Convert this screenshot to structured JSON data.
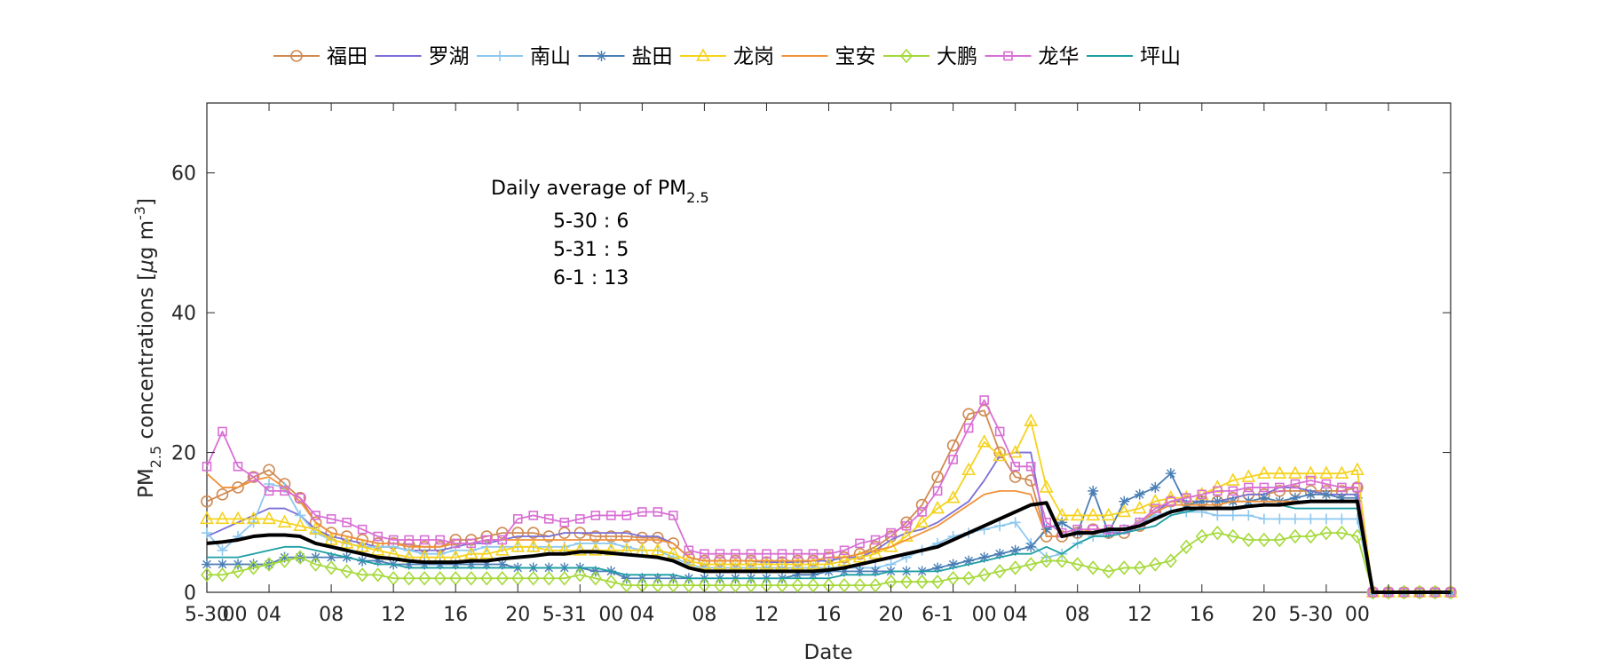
{
  "chart_data": {
    "type": "line",
    "xlabel": "Date",
    "ylabel_main": "PM",
    "ylabel_sub": "2.5",
    "ylabel_rest": " concentrations [",
    "ylabel_mu": "μ",
    "ylabel_unit": "g m",
    "ylabel_sup": "-3",
    "ylabel_close": "]",
    "ylim": [
      0,
      70
    ],
    "yticks": [
      0,
      20,
      40,
      60
    ],
    "xlim": [
      0,
      80
    ],
    "x_tick_labels": [
      {
        "x": 0,
        "label": "5-30"
      },
      {
        "x": 1.8,
        "label": "00"
      },
      {
        "x": 4,
        "label": "04"
      },
      {
        "x": 8,
        "label": "08"
      },
      {
        "x": 12,
        "label": "12"
      },
      {
        "x": 16,
        "label": "16"
      },
      {
        "x": 20,
        "label": "20"
      },
      {
        "x": 23,
        "label": "5-31"
      },
      {
        "x": 26,
        "label": "00"
      },
      {
        "x": 28,
        "label": "04"
      },
      {
        "x": 32,
        "label": "08"
      },
      {
        "x": 36,
        "label": "12"
      },
      {
        "x": 40,
        "label": "16"
      },
      {
        "x": 44,
        "label": "20"
      },
      {
        "x": 47,
        "label": "6-1"
      },
      {
        "x": 50,
        "label": "00"
      },
      {
        "x": 52,
        "label": "04"
      },
      {
        "x": 56,
        "label": "08"
      },
      {
        "x": 60,
        "label": "12"
      },
      {
        "x": 64,
        "label": "16"
      },
      {
        "x": 68,
        "label": "20"
      },
      {
        "x": 71,
        "label": "5-30"
      },
      {
        "x": 74,
        "label": "00"
      }
    ],
    "x_ticks": [
      0,
      4,
      8,
      12,
      16,
      20,
      24,
      28,
      32,
      36,
      40,
      44,
      48,
      52,
      56,
      60,
      64,
      68,
      72,
      76,
      80
    ],
    "grid": false,
    "legend_position": "top",
    "annotation": {
      "title_main": "Daily average of PM",
      "title_sub": "2.5",
      "lines": [
        "5-30 : 6",
        "5-31 : 5",
        "6-1 : 13"
      ]
    },
    "series": [
      {
        "name": "福田",
        "color": "#d08a52",
        "marker": "circle",
        "values": [
          13,
          14,
          15,
          16.5,
          17.5,
          15.5,
          13.5,
          10,
          8.5,
          8,
          7.5,
          7,
          7,
          6.8,
          6.5,
          6.5,
          7.5,
          7.5,
          8,
          8.5,
          8.5,
          8.5,
          8,
          8.5,
          8.5,
          8,
          8,
          8,
          7.8,
          7.8,
          7,
          5,
          4.5,
          4.5,
          4.5,
          4.5,
          4.3,
          4.3,
          4.5,
          4.5,
          5,
          5,
          5.5,
          6.5,
          8,
          10,
          12.5,
          16.5,
          21,
          25.5,
          26,
          20,
          16.5,
          16,
          8,
          8,
          8.5,
          9,
          8.5,
          8.5,
          9.5,
          11.5,
          13,
          13,
          13,
          13,
          13.5,
          14,
          14,
          14.5,
          14.5,
          14.5,
          14.5,
          14.5,
          15,
          0,
          0,
          0,
          0,
          0,
          0
        ]
      },
      {
        "name": "罗湖",
        "color": "#7a6fd6",
        "marker": "none",
        "values": [
          8,
          9,
          10,
          11,
          12,
          12,
          11,
          9,
          8,
          7.5,
          7,
          6.5,
          6.5,
          6,
          6,
          6,
          6.5,
          7,
          7,
          7.5,
          8,
          8,
          8,
          8.5,
          8.5,
          8.5,
          8.5,
          8.5,
          8,
          8,
          7,
          5,
          4.5,
          4.5,
          4.5,
          4.5,
          4.3,
          4.3,
          4.3,
          4.5,
          4.5,
          5,
          5,
          6,
          7.5,
          8.5,
          9,
          10,
          11.5,
          13,
          16,
          19.5,
          20,
          20,
          8,
          8,
          8.5,
          9,
          8.5,
          8.5,
          9.5,
          11.5,
          13,
          13,
          13,
          13,
          13.5,
          14,
          14,
          15,
          15,
          14.5,
          14,
          14,
          14,
          0,
          0,
          0,
          0,
          0,
          0
        ]
      },
      {
        "name": "南山",
        "color": "#8dc8f0",
        "marker": "plus",
        "values": [
          8.5,
          6,
          8,
          10,
          15.5,
          15,
          11,
          8.5,
          7.5,
          7,
          6.5,
          6.5,
          6.5,
          6,
          5.5,
          5.5,
          6,
          6,
          6.5,
          6.5,
          6.5,
          6.5,
          6.5,
          6.5,
          7,
          7,
          7,
          6.5,
          6,
          6,
          5,
          4,
          3.5,
          3.5,
          3.5,
          3.5,
          3.5,
          3.5,
          3.5,
          3.5,
          3.5,
          3.5,
          3.5,
          3.5,
          4,
          5,
          6,
          7,
          8,
          8.5,
          9,
          9.5,
          10,
          7,
          5,
          5.5,
          7,
          8,
          8.5,
          9,
          10,
          11,
          11.5,
          11.5,
          11.5,
          11,
          11,
          11,
          10.5,
          10.5,
          10.5,
          10.5,
          10.5,
          10.5,
          10.5,
          0,
          0,
          0,
          0,
          0,
          0
        ]
      },
      {
        "name": "盐田",
        "color": "#4a7fb5",
        "marker": "asterisk",
        "values": [
          4,
          4,
          4,
          4,
          4,
          5,
          5,
          5,
          5,
          5,
          4.5,
          4.5,
          4,
          4,
          4,
          4,
          4,
          4,
          4,
          4,
          3.5,
          3.5,
          3.5,
          3.5,
          3.5,
          3,
          3,
          2,
          2,
          2,
          2,
          2,
          2,
          2,
          2,
          2,
          2,
          2,
          2.5,
          2.5,
          3,
          3,
          3,
          3,
          3,
          3,
          3,
          3.5,
          4,
          4.5,
          5,
          5.5,
          6,
          6.5,
          9,
          10,
          8.5,
          14.5,
          8.5,
          13,
          14,
          15,
          17,
          12.5,
          13,
          13,
          13,
          13,
          13.5,
          13,
          13.5,
          14,
          14,
          13.5,
          13.5,
          0,
          0,
          0,
          0,
          0,
          0
        ]
      },
      {
        "name": "龙岗",
        "color": "#f5d21c",
        "marker": "triangle",
        "values": [
          10.5,
          10.5,
          10.5,
          10.5,
          10.5,
          10,
          9.5,
          9,
          7.5,
          7,
          6.5,
          6,
          5.5,
          5,
          5,
          5,
          5,
          5.5,
          5.5,
          6,
          6.5,
          6.5,
          6,
          6,
          6,
          6,
          6,
          6,
          6,
          6,
          5.5,
          4.5,
          4,
          4,
          4,
          4,
          4,
          4,
          4,
          4,
          4,
          4.5,
          5,
          5.5,
          6.5,
          8,
          10,
          12,
          13.5,
          17.5,
          21.5,
          19.5,
          20,
          24.5,
          15,
          11,
          11,
          11,
          11,
          11.5,
          12,
          13,
          13.5,
          13.5,
          14,
          15,
          16,
          16.5,
          17,
          17,
          17,
          17,
          17,
          17,
          17.5,
          0,
          0,
          0,
          0,
          0,
          0
        ]
      },
      {
        "name": "宝安",
        "color": "#f0923a",
        "marker": "none",
        "values": [
          17,
          15,
          15,
          16,
          16.5,
          15,
          13,
          10,
          8.5,
          8,
          7.5,
          7,
          7,
          6.5,
          6.5,
          6.5,
          7,
          7,
          7.5,
          7.5,
          7.5,
          7.5,
          7.5,
          7.5,
          7.5,
          7.5,
          7.5,
          7.5,
          7.5,
          7.5,
          7,
          5,
          4.5,
          4.5,
          4.5,
          4.5,
          4.5,
          4.5,
          4.5,
          4.5,
          5,
          5,
          5.5,
          6,
          6.5,
          7.5,
          8.5,
          9.5,
          11,
          12.5,
          14,
          14.5,
          14.5,
          14,
          8,
          8,
          8.5,
          9,
          9,
          9,
          10,
          11.5,
          12.5,
          12.5,
          12.5,
          12.5,
          13,
          13,
          13,
          13,
          13,
          13,
          13,
          13,
          13,
          0,
          0,
          0,
          0,
          0,
          0
        ]
      },
      {
        "name": "大鹏",
        "color": "#a5d93a",
        "marker": "diamond",
        "values": [
          2.5,
          2.5,
          3,
          3.5,
          4,
          4.5,
          5,
          4,
          3.5,
          3,
          2.5,
          2.5,
          2,
          2,
          2,
          2,
          2,
          2,
          2,
          2,
          2,
          2,
          2,
          2,
          2.5,
          2,
          1.5,
          1,
          1,
          1,
          1,
          1,
          1,
          1,
          1,
          1,
          1,
          1,
          1,
          1,
          1,
          1,
          1,
          1,
          1.5,
          1.5,
          1.5,
          1.5,
          2,
          2,
          2.5,
          3,
          3.5,
          4,
          4.5,
          4.5,
          4,
          3.5,
          3,
          3.5,
          3.5,
          4,
          4.5,
          6.5,
          8,
          8.5,
          8,
          7.5,
          7.5,
          7.5,
          8,
          8,
          8.5,
          8.5,
          8,
          0,
          0,
          0,
          0,
          0,
          0
        ]
      },
      {
        "name": "龙华",
        "color": "#d96fd4",
        "marker": "square",
        "values": [
          18,
          23,
          18,
          16.5,
          14.5,
          14.5,
          13.5,
          11,
          10.5,
          10,
          9,
          8,
          7.5,
          7.5,
          7.5,
          7.5,
          7,
          7,
          7.5,
          7.5,
          10.5,
          11,
          10.5,
          10,
          10.5,
          11,
          11,
          11,
          11.5,
          11.5,
          11,
          6,
          5.5,
          5.5,
          5.5,
          5.5,
          5.5,
          5.5,
          5.5,
          5.5,
          5.5,
          6,
          7,
          7.5,
          8.5,
          9.5,
          11.5,
          14.5,
          19,
          23.5,
          27.5,
          23,
          18,
          18,
          10,
          8.5,
          9,
          9,
          9,
          9,
          10,
          12,
          13,
          13.5,
          14,
          14.5,
          14.5,
          15,
          15,
          15,
          15.5,
          16,
          15.5,
          15,
          15,
          0,
          0,
          0,
          0,
          0,
          0
        ]
      },
      {
        "name": "坪山",
        "color": "#1c9fa3",
        "marker": "none",
        "values": [
          5,
          5,
          5,
          5.5,
          6,
          6.5,
          6.5,
          6,
          5.5,
          5,
          4.5,
          4,
          4,
          3.5,
          3.5,
          3.5,
          3.5,
          3.5,
          3.5,
          3.5,
          3.5,
          3.5,
          3.5,
          3.5,
          3.5,
          3.5,
          3,
          2.5,
          2.5,
          2.5,
          2.5,
          2,
          2,
          2,
          2,
          2,
          2,
          2,
          2,
          2,
          2,
          2.5,
          2.5,
          2.5,
          3,
          3,
          3,
          3,
          3.5,
          4,
          4.5,
          5,
          5.5,
          5.5,
          6.5,
          5.5,
          7,
          8,
          8,
          8.5,
          9,
          9.5,
          11,
          11.5,
          12,
          12,
          12,
          12.5,
          12.5,
          12.5,
          12,
          12,
          12,
          12,
          12,
          0,
          0,
          0,
          0,
          0,
          0
        ]
      },
      {
        "name": "",
        "color": "#000000",
        "marker": "none",
        "thick": true,
        "values": [
          7,
          7.2,
          7.5,
          8,
          8.2,
          8.2,
          8,
          7,
          6.5,
          6,
          5.5,
          5,
          4.8,
          4.5,
          4.3,
          4.3,
          4.3,
          4.5,
          4.5,
          4.8,
          5,
          5.2,
          5.5,
          5.5,
          5.8,
          5.8,
          5.6,
          5.4,
          5.2,
          5,
          4.5,
          3.5,
          3,
          3,
          3,
          3,
          3,
          3,
          3,
          3,
          3.2,
          3.5,
          4,
          4.5,
          5,
          5.5,
          6,
          6.5,
          7.5,
          8.5,
          9.5,
          10.5,
          11.5,
          12.5,
          12.8,
          8,
          8.5,
          8.5,
          9,
          9,
          9.5,
          10.5,
          11.5,
          12,
          12,
          12,
          12,
          12.3,
          12.5,
          12.5,
          12.8,
          13,
          13,
          13,
          13,
          0,
          0,
          0,
          0,
          0,
          0
        ]
      }
    ]
  }
}
